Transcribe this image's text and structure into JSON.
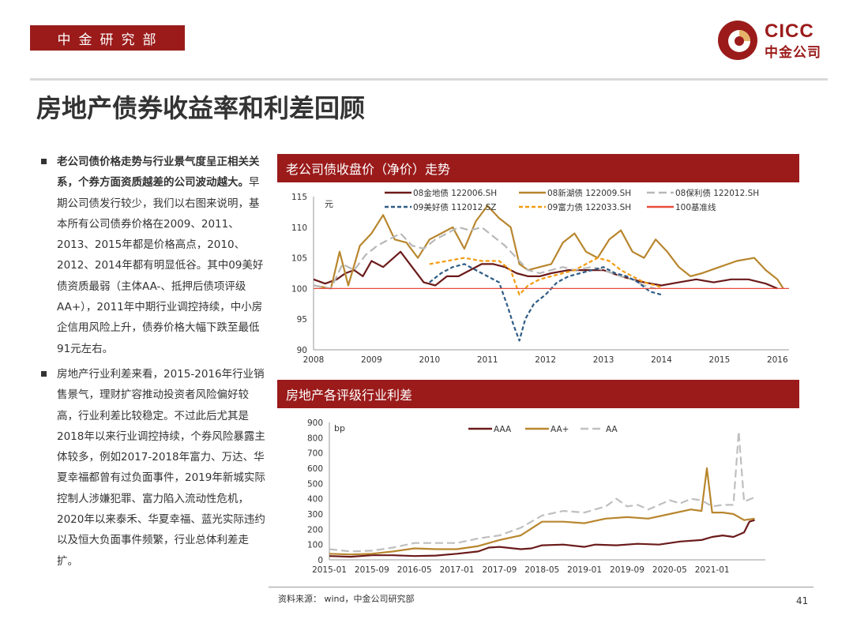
{
  "header": {
    "department": "中金研究部",
    "logo_en": "CICC",
    "logo_cn": "中金公司"
  },
  "page_title": "房地产债券收益率和利差回顾",
  "body_text": {
    "bullet1_bold": "老公司债价格走势与行业景气度呈正相关关系，个券方面资质越差的公司波动越大。",
    "bullet1_rest": "早期公司债发行较少，我们以右图来说明，基本所有公司债券价格在2009、2011、2013、2015年都是价格高点，2010、2012、2014年都有明显低谷。其中09美好债资质最弱（主体AA-、抵押后债项评级AA+），2011年中期行业调控持续，中小房企信用风险上升，债券价格大幅下跌至最低91元左右。",
    "bullet2": "房地产行业利差来看，2015-2016年行业销售景气，理财扩容推动投资者风险偏好较高，行业利差比较稳定。不过此后尤其是2018年以来行业调控持续，个券风险暴露主体较多，例如2017-2018年富力、万达、华夏幸福都曾有过负面事件，2019年新城实际控制人涉嫌犯罪、富力陷入流动性危机，2020年以来泰禾、华夏幸福、蓝光实际违约以及恒大负面事件频繁，行业总体利差走扩。"
  },
  "chart1_title": "老公司债收盘价（净价）走势",
  "chart2_title": "房地产各评级行业利差",
  "source": "资料来源： wind，中金公司研究部",
  "page_number": "41",
  "chart_data": [
    {
      "type": "line",
      "ylabel": "元",
      "ylim": [
        90,
        115
      ],
      "yticks": [
        90,
        95,
        100,
        105,
        110,
        115
      ],
      "xlim": [
        2008,
        2016.2
      ],
      "xticks": [
        "2008",
        "2009",
        "2010",
        "2011",
        "2012",
        "2013",
        "2014",
        "2015",
        "2016"
      ],
      "legend_position": "top",
      "series": [
        {
          "name": "08金地债 122006.SH",
          "color": "#6b1a1a",
          "dash": "solid",
          "x": [
            2008.0,
            2008.2,
            2008.4,
            2008.55,
            2008.7,
            2008.85,
            2009.0,
            2009.2,
            2009.5,
            2009.7,
            2009.9,
            2010.1,
            2010.3,
            2010.5,
            2010.7,
            2010.9,
            2011.1,
            2011.3,
            2011.5,
            2011.7,
            2011.9,
            2012.1,
            2012.4,
            2012.7,
            2013.0,
            2013.3,
            2013.5,
            2013.7,
            2014.0,
            2014.3,
            2014.6,
            2014.9,
            2015.2,
            2015.5,
            2015.8,
            2016.0
          ],
          "y": [
            101.5,
            100.8,
            101.5,
            102.5,
            103.0,
            102.0,
            104.5,
            103.5,
            106.0,
            103.5,
            101.0,
            100.5,
            102.0,
            102.0,
            103.0,
            104.0,
            104.0,
            103.5,
            102.5,
            102.0,
            102.0,
            102.5,
            103.0,
            103.0,
            103.0,
            102.0,
            101.5,
            101.0,
            100.5,
            101.0,
            101.5,
            101.0,
            101.5,
            101.5,
            100.8,
            100.0
          ]
        },
        {
          "name": "08新湖债 122009.SH",
          "color": "#b8862e",
          "dash": "solid",
          "x": [
            2008.0,
            2008.3,
            2008.45,
            2008.6,
            2008.8,
            2009.0,
            2009.2,
            2009.4,
            2009.6,
            2009.8,
            2010.0,
            2010.2,
            2010.4,
            2010.6,
            2010.8,
            2011.0,
            2011.2,
            2011.4,
            2011.55,
            2011.7,
            2011.9,
            2012.1,
            2012.3,
            2012.5,
            2012.7,
            2012.9,
            2013.1,
            2013.3,
            2013.5,
            2013.7,
            2013.9,
            2014.1,
            2014.3,
            2014.5,
            2014.7,
            2015.0,
            2015.3,
            2015.6,
            2015.8,
            2016.0,
            2016.1
          ],
          "y": [
            100.5,
            100.0,
            106.0,
            100.5,
            107.0,
            109.0,
            112.0,
            108.0,
            107.5,
            105.0,
            108.0,
            109.0,
            110.0,
            106.5,
            111.0,
            113.5,
            111.5,
            110.0,
            104.0,
            103.0,
            103.5,
            104.0,
            107.5,
            109.0,
            106.0,
            105.0,
            108.0,
            109.5,
            106.0,
            105.0,
            108.0,
            106.0,
            103.5,
            102.0,
            102.5,
            103.5,
            104.5,
            105.0,
            103.0,
            101.5,
            100.0
          ]
        },
        {
          "name": "08保利债 122012.SH",
          "color": "#b8b8b8",
          "dash": "long",
          "x": [
            2008.0,
            2008.3,
            2008.5,
            2008.7,
            2008.9,
            2009.1,
            2009.3,
            2009.5,
            2009.7,
            2009.9,
            2010.1,
            2010.3,
            2010.5,
            2010.7,
            2010.9,
            2011.1,
            2011.3,
            2011.5,
            2011.7,
            2011.9,
            2012.1,
            2012.3,
            2012.5,
            2012.8,
            2013.0,
            2013.3,
            2013.5,
            2013.7,
            2013.9
          ],
          "y": [
            100.5,
            100.0,
            104.0,
            103.0,
            105.5,
            107.0,
            108.0,
            109.0,
            107.0,
            106.5,
            108.0,
            109.0,
            110.0,
            109.5,
            110.0,
            108.5,
            107.0,
            105.0,
            103.0,
            102.5,
            103.0,
            103.5,
            103.0,
            103.5,
            103.0,
            102.0,
            101.5,
            100.5,
            100.0
          ]
        },
        {
          "name": "09美好债 112012.SZ",
          "color": "#2f5c86",
          "dash": "dash",
          "x": [
            2010.0,
            2010.2,
            2010.4,
            2010.6,
            2010.8,
            2011.0,
            2011.2,
            2011.35,
            2011.45,
            2011.55,
            2011.65,
            2011.8,
            2012.0,
            2012.2,
            2012.4,
            2012.6,
            2012.8,
            2013.0,
            2013.2,
            2013.4,
            2013.6,
            2013.8,
            2014.0
          ],
          "y": [
            101.0,
            102.5,
            103.5,
            104.0,
            103.0,
            102.0,
            101.0,
            97.0,
            94.0,
            91.5,
            95.0,
            97.5,
            99.0,
            101.0,
            102.0,
            102.5,
            103.0,
            103.5,
            102.5,
            102.0,
            101.0,
            99.5,
            99.0
          ]
        },
        {
          "name": "09富力债 122033.SH",
          "color": "#f39c12",
          "dash": "dash",
          "x": [
            2010.0,
            2010.3,
            2010.6,
            2010.9,
            2011.2,
            2011.4,
            2011.55,
            2011.7,
            2011.9,
            2012.1,
            2012.3,
            2012.5,
            2012.7,
            2012.9,
            2013.1,
            2013.3,
            2013.5,
            2013.7,
            2013.9,
            2014.0
          ],
          "y": [
            104.0,
            104.5,
            105.0,
            104.5,
            104.5,
            103.0,
            99.0,
            100.5,
            101.5,
            102.0,
            102.5,
            103.0,
            104.0,
            105.0,
            104.5,
            103.0,
            102.0,
            101.0,
            100.5,
            100.2
          ]
        },
        {
          "name": "100基准线",
          "color": "#e74c3c",
          "dash": "solid",
          "x": [
            2008.0,
            2016.2
          ],
          "y": [
            100,
            100
          ]
        }
      ]
    },
    {
      "type": "line",
      "ylabel": "bp",
      "ylim": [
        0,
        900
      ],
      "yticks": [
        0,
        100,
        200,
        300,
        400,
        500,
        600,
        700,
        800,
        900
      ],
      "xlim": [
        0,
        82
      ],
      "xticks": [
        "2015-01",
        "2015-09",
        "2016-05",
        "2017-01",
        "2017-09",
        "2018-05",
        "2019-01",
        "2019-09",
        "2020-05",
        "2021-01"
      ],
      "xtick_positions": [
        0,
        8,
        16,
        24,
        32,
        40,
        48,
        56,
        64,
        72
      ],
      "legend_position": "top",
      "series": [
        {
          "name": "AAA",
          "color": "#6b1a1a",
          "dash": "solid",
          "x": [
            0,
            4,
            8,
            12,
            16,
            20,
            24,
            28,
            30,
            32,
            36,
            38,
            40,
            44,
            48,
            50,
            54,
            58,
            62,
            66,
            70,
            72,
            74,
            76,
            78,
            79,
            80
          ],
          "y": [
            25,
            20,
            30,
            30,
            25,
            28,
            40,
            55,
            80,
            85,
            70,
            75,
            95,
            100,
            85,
            100,
            95,
            105,
            100,
            120,
            130,
            150,
            160,
            150,
            180,
            250,
            260
          ]
        },
        {
          "name": "AA+",
          "color": "#b8862e",
          "dash": "solid",
          "x": [
            0,
            4,
            8,
            12,
            16,
            20,
            24,
            28,
            32,
            36,
            40,
            44,
            48,
            52,
            56,
            60,
            64,
            68,
            70,
            71,
            72,
            74,
            76,
            78,
            80
          ],
          "y": [
            40,
            35,
            40,
            55,
            75,
            70,
            70,
            90,
            130,
            160,
            250,
            250,
            240,
            270,
            280,
            270,
            300,
            330,
            320,
            600,
            310,
            310,
            300,
            260,
            270
          ]
        },
        {
          "name": "AA",
          "color": "#bfbfbf",
          "dash": "long",
          "x": [
            0,
            4,
            8,
            12,
            16,
            20,
            24,
            28,
            32,
            36,
            40,
            44,
            48,
            52,
            54,
            56,
            58,
            60,
            64,
            66,
            68,
            70,
            72,
            74,
            76,
            77,
            78,
            80
          ],
          "y": [
            70,
            55,
            60,
            80,
            110,
            110,
            110,
            140,
            160,
            210,
            290,
            320,
            310,
            350,
            400,
            350,
            360,
            330,
            390,
            370,
            400,
            390,
            350,
            360,
            360,
            840,
            380,
            410
          ]
        }
      ]
    }
  ]
}
